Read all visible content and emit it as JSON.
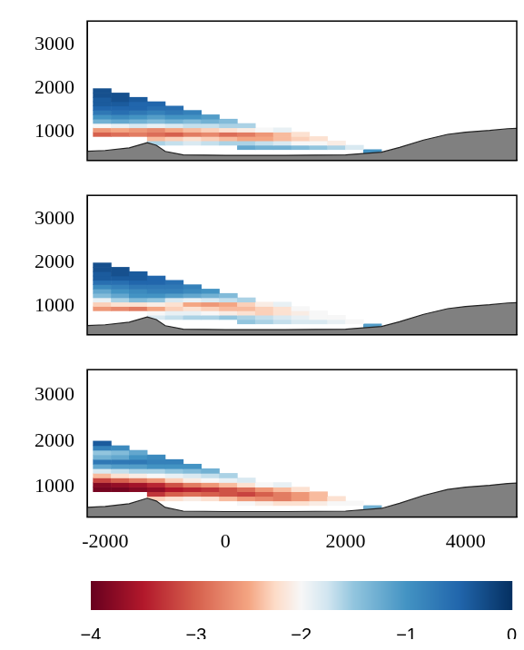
{
  "chart_data": [
    {
      "type": "heatmap",
      "xlim": [
        -2300,
        4850
      ],
      "ylim": [
        350,
        3550
      ],
      "xticks": [
        -2000,
        0,
        2000,
        4000
      ],
      "yticks": [
        1000,
        2000,
        3000
      ],
      "grid": false,
      "tick_labels": "y",
      "cells": [
        [
          null,
          null,
          null,
          null,
          null,
          null,
          null,
          null,
          null,
          null,
          null,
          null,
          null,
          null,
          null,
          -1.0
        ],
        [
          null,
          null,
          null,
          null,
          null,
          null,
          null,
          null,
          -1.2,
          -1.3,
          -1.3,
          -1.4,
          -1.5,
          -1.6,
          -1.8,
          null
        ],
        [
          null,
          null,
          null,
          -1.6,
          -1.7,
          -1.8,
          -1.7,
          -1.6,
          -1.6,
          -1.7,
          -1.8,
          -2.0,
          -2.0,
          -2.1,
          null,
          null
        ],
        [
          null,
          null,
          null,
          -2.4,
          -2.3,
          -2.2,
          -2.3,
          -2.4,
          -2.5,
          -2.5,
          -2.4,
          -2.3,
          -2.2,
          null,
          null,
          null
        ],
        [
          -3.0,
          -2.9,
          -2.8,
          -2.9,
          -3.0,
          -2.8,
          -2.7,
          -2.9,
          -2.8,
          -2.6,
          -2.4,
          -2.2,
          null,
          null,
          null,
          null
        ],
        [
          -2.6,
          -2.5,
          -2.6,
          -2.7,
          -2.5,
          -2.4,
          -2.3,
          -2.2,
          -2.1,
          -2.0,
          -1.9,
          null,
          null,
          null,
          null,
          null
        ],
        [
          -2.0,
          -1.9,
          -1.8,
          -1.9,
          -1.8,
          -1.7,
          -1.7,
          -1.6,
          -1.6,
          null,
          null,
          null,
          null,
          null,
          null,
          null
        ],
        [
          -1.3,
          -1.2,
          -1.3,
          -1.4,
          -1.3,
          -1.4,
          -1.3,
          -1.4,
          null,
          null,
          null,
          null,
          null,
          null,
          null,
          null
        ],
        [
          -1.0,
          -0.9,
          -1.0,
          -1.1,
          -1.0,
          -1.0,
          -1.1,
          null,
          null,
          null,
          null,
          null,
          null,
          null,
          null,
          null
        ],
        [
          -0.7,
          -0.6,
          -0.7,
          -0.8,
          -0.7,
          -0.8,
          null,
          null,
          null,
          null,
          null,
          null,
          null,
          null,
          null,
          null
        ],
        [
          -0.5,
          -0.5,
          -0.5,
          -0.6,
          -0.6,
          null,
          null,
          null,
          null,
          null,
          null,
          null,
          null,
          null,
          null,
          null
        ],
        [
          -0.4,
          -0.4,
          -0.5,
          -0.5,
          null,
          null,
          null,
          null,
          null,
          null,
          null,
          null,
          null,
          null,
          null,
          null
        ],
        [
          -0.4,
          -0.3,
          -0.4,
          null,
          null,
          null,
          null,
          null,
          null,
          null,
          null,
          null,
          null,
          null,
          null,
          null
        ],
        [
          -0.3,
          -0.3,
          null,
          null,
          null,
          null,
          null,
          null,
          null,
          null,
          null,
          null,
          null,
          null,
          null,
          null
        ],
        [
          -0.3,
          null,
          null,
          null,
          null,
          null,
          null,
          null,
          null,
          null,
          null,
          null,
          null,
          null,
          null,
          null
        ]
      ]
    },
    {
      "type": "heatmap",
      "xlim": [
        -2300,
        4850
      ],
      "ylim": [
        350,
        3550
      ],
      "xticks": [
        -2000,
        0,
        2000,
        4000
      ],
      "yticks": [
        1000,
        2000,
        3000
      ],
      "grid": false,
      "tick_labels": "y",
      "cells": [
        [
          null,
          null,
          null,
          null,
          null,
          null,
          null,
          null,
          null,
          null,
          null,
          null,
          null,
          null,
          null,
          -1.1
        ],
        [
          null,
          null,
          null,
          null,
          null,
          null,
          null,
          null,
          -1.5,
          -1.6,
          -1.7,
          -1.8,
          -1.8,
          -1.9,
          -2.0,
          null
        ],
        [
          null,
          null,
          null,
          -1.8,
          -1.7,
          -1.6,
          -1.6,
          -1.5,
          -1.6,
          -1.7,
          -1.8,
          -1.9,
          -2.0,
          -2.0,
          null,
          null
        ],
        [
          null,
          null,
          null,
          -2.0,
          -1.9,
          -1.9,
          -2.0,
          -2.1,
          -2.2,
          -2.3,
          -2.2,
          -2.1,
          -2.0,
          null,
          null,
          null
        ],
        [
          -2.6,
          -2.7,
          -2.8,
          -2.5,
          -2.3,
          -2.2,
          -2.3,
          -2.4,
          -2.4,
          -2.3,
          -2.2,
          -2.0,
          null,
          null,
          null,
          null
        ],
        [
          -2.3,
          -2.2,
          -2.2,
          -2.1,
          -2.2,
          -2.5,
          -2.6,
          -2.5,
          -2.3,
          -2.1,
          -1.9,
          null,
          null,
          null,
          null,
          null
        ],
        [
          -1.9,
          -1.6,
          -1.4,
          -1.5,
          -1.8,
          -1.9,
          -1.8,
          -1.7,
          -1.6,
          null,
          null,
          null,
          null,
          null,
          null,
          null
        ],
        [
          -1.4,
          -1.2,
          -1.0,
          -1.0,
          -1.1,
          -1.2,
          -1.3,
          -1.4,
          null,
          null,
          null,
          null,
          null,
          null,
          null,
          null
        ],
        [
          -1.2,
          -1.0,
          -0.9,
          -0.8,
          -0.8,
          -0.9,
          -1.0,
          null,
          null,
          null,
          null,
          null,
          null,
          null,
          null,
          null
        ],
        [
          -0.9,
          -0.8,
          -0.7,
          -0.7,
          -0.7,
          -0.8,
          null,
          null,
          null,
          null,
          null,
          null,
          null,
          null,
          null,
          null
        ],
        [
          -0.6,
          -0.6,
          -0.5,
          -0.5,
          -0.6,
          null,
          null,
          null,
          null,
          null,
          null,
          null,
          null,
          null,
          null,
          null
        ],
        [
          -0.4,
          -0.4,
          -0.4,
          -0.5,
          null,
          null,
          null,
          null,
          null,
          null,
          null,
          null,
          null,
          null,
          null,
          null
        ],
        [
          -0.4,
          -0.3,
          -0.4,
          null,
          null,
          null,
          null,
          null,
          null,
          null,
          null,
          null,
          null,
          null,
          null,
          null
        ],
        [
          -0.3,
          -0.3,
          null,
          null,
          null,
          null,
          null,
          null,
          null,
          null,
          null,
          null,
          null,
          null,
          null,
          null
        ],
        [
          -0.3,
          null,
          null,
          null,
          null,
          null,
          null,
          null,
          null,
          null,
          null,
          null,
          null,
          null,
          null,
          null
        ]
      ]
    },
    {
      "type": "heatmap",
      "xlim": [
        -2300,
        4850
      ],
      "ylim": [
        350,
        3550
      ],
      "xticks": [
        -2000,
        0,
        2000,
        4000
      ],
      "yticks": [
        1000,
        2000,
        3000
      ],
      "grid": false,
      "cells": [
        [
          null,
          null,
          null,
          null,
          null,
          null,
          null,
          null,
          null,
          null,
          null,
          null,
          null,
          null,
          null,
          -1.3
        ],
        [
          null,
          null,
          null,
          null,
          null,
          null,
          null,
          null,
          -2.0,
          -2.1,
          -2.2,
          -2.2,
          -2.1,
          -2.0,
          -2.0,
          null
        ],
        [
          null,
          null,
          null,
          -2.3,
          -2.2,
          -2.1,
          -2.2,
          -2.4,
          -2.6,
          -2.7,
          -2.8,
          -2.6,
          -2.4,
          -2.2,
          null,
          null
        ],
        [
          null,
          null,
          null,
          -3.3,
          -3.0,
          -2.9,
          -3.0,
          -3.1,
          -3.2,
          -3.0,
          -2.8,
          -2.6,
          -2.4,
          null,
          null,
          null
        ],
        [
          -3.9,
          -3.9,
          -3.8,
          -3.7,
          -3.5,
          -3.4,
          -3.3,
          -3.1,
          -2.9,
          -2.6,
          -2.4,
          -2.2,
          null,
          null,
          null,
          null
        ],
        [
          -3.8,
          -3.7,
          -3.6,
          -3.4,
          -3.1,
          -2.8,
          -2.6,
          -2.4,
          -2.2,
          -2.0,
          -1.9,
          null,
          null,
          null,
          null,
          null
        ],
        [
          -3.2,
          -3.0,
          -2.8,
          -2.6,
          -2.3,
          -2.1,
          -2.0,
          -1.9,
          -1.8,
          null,
          null,
          null,
          null,
          null,
          null,
          null
        ],
        [
          -2.4,
          -2.2,
          -2.1,
          -2.0,
          -1.9,
          -1.8,
          -1.7,
          -1.6,
          null,
          null,
          null,
          null,
          null,
          null,
          null,
          null
        ],
        [
          -1.8,
          -1.7,
          -1.6,
          -1.6,
          -1.5,
          -1.4,
          -1.3,
          null,
          null,
          null,
          null,
          null,
          null,
          null,
          null,
          null
        ],
        [
          -1.2,
          -1.1,
          -1.1,
          -1.0,
          -1.0,
          -1.0,
          null,
          null,
          null,
          null,
          null,
          null,
          null,
          null,
          null,
          null
        ],
        [
          -0.7,
          -0.7,
          -0.7,
          -0.8,
          -0.8,
          null,
          null,
          null,
          null,
          null,
          null,
          null,
          null,
          null,
          null,
          null
        ],
        [
          -1.3,
          -1.2,
          -1.0,
          -0.9,
          null,
          null,
          null,
          null,
          null,
          null,
          null,
          null,
          null,
          null,
          null,
          null
        ],
        [
          -1.5,
          -1.4,
          -1.2,
          null,
          null,
          null,
          null,
          null,
          null,
          null,
          null,
          null,
          null,
          null,
          null,
          null
        ],
        [
          -0.8,
          -0.9,
          null,
          null,
          null,
          null,
          null,
          null,
          null,
          null,
          null,
          null,
          null,
          null,
          null,
          null
        ],
        [
          -0.4,
          null,
          null,
          null,
          null,
          null,
          null,
          null,
          null,
          null,
          null,
          null,
          null,
          null,
          null,
          null
        ]
      ]
    }
  ],
  "x_edges": [
    -2200,
    -1900,
    -1600,
    -1300,
    -1000,
    -700,
    -400,
    -100,
    200,
    500,
    800,
    1100,
    1400,
    1700,
    2000,
    2300,
    2600
  ],
  "y_edges": [
    500,
    600,
    700,
    800,
    900,
    1000,
    1100,
    1200,
    1300,
    1400,
    1500,
    1600,
    1700,
    1800,
    1900,
    2000
  ],
  "terrain": {
    "color": "#808080",
    "x": [
      -2300,
      -2000,
      -1600,
      -1300,
      -1150,
      -1000,
      -700,
      0,
      1000,
      2000,
      2600,
      2900,
      3300,
      3700,
      4000,
      4400,
      4700,
      4850
    ],
    "values": [
      560,
      580,
      640,
      760,
      700,
      560,
      480,
      470,
      470,
      480,
      540,
      650,
      820,
      950,
      1000,
      1040,
      1080,
      1090
    ]
  },
  "colorbar": {
    "range": [
      -4,
      0
    ],
    "ticks": [
      {
        "value": -4,
        "label": "−4"
      },
      {
        "value": -3,
        "label": "−3"
      },
      {
        "value": -2,
        "label": "−2"
      },
      {
        "value": -1,
        "label": "−1"
      },
      0
    ]
  }
}
